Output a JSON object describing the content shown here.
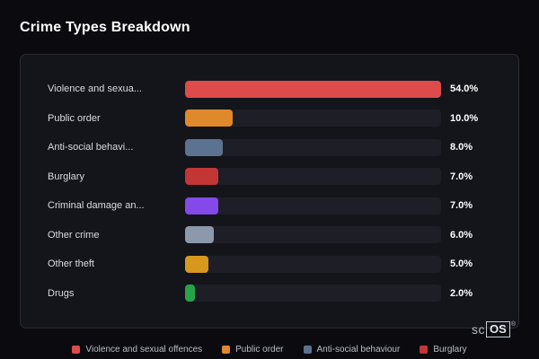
{
  "title": "Crime Types Breakdown",
  "chart_data": {
    "type": "bar",
    "orientation": "horizontal",
    "categories": [
      "Violence and sexua...",
      "Public order",
      "Anti-social behavi...",
      "Burglary",
      "Criminal damage an...",
      "Other crime",
      "Other theft",
      "Drugs"
    ],
    "values": [
      54.0,
      10.0,
      8.0,
      7.0,
      7.0,
      6.0,
      5.0,
      2.0
    ],
    "value_labels": [
      "54.0%",
      "10.0%",
      "8.0%",
      "7.0%",
      "7.0%",
      "6.0%",
      "5.0%",
      "2.0%"
    ],
    "bar_colors": [
      "#dd4b4b",
      "#e0882c",
      "#5b7290",
      "#c23636",
      "#8449e8",
      "#8c99aa",
      "#d6991e",
      "#26a349"
    ],
    "xlim": [
      0,
      54
    ],
    "grid": false,
    "legend_position": "bottom"
  },
  "legend": [
    {
      "label": "Violence and sexual offences",
      "color": "#dd4b4b"
    },
    {
      "label": "Public order",
      "color": "#e0882c"
    },
    {
      "label": "Anti-social behaviour",
      "color": "#5b7290"
    },
    {
      "label": "Burglary",
      "color": "#c23636"
    }
  ],
  "brand": {
    "prefix": "sc",
    "box": "OS",
    "reg": "®"
  }
}
